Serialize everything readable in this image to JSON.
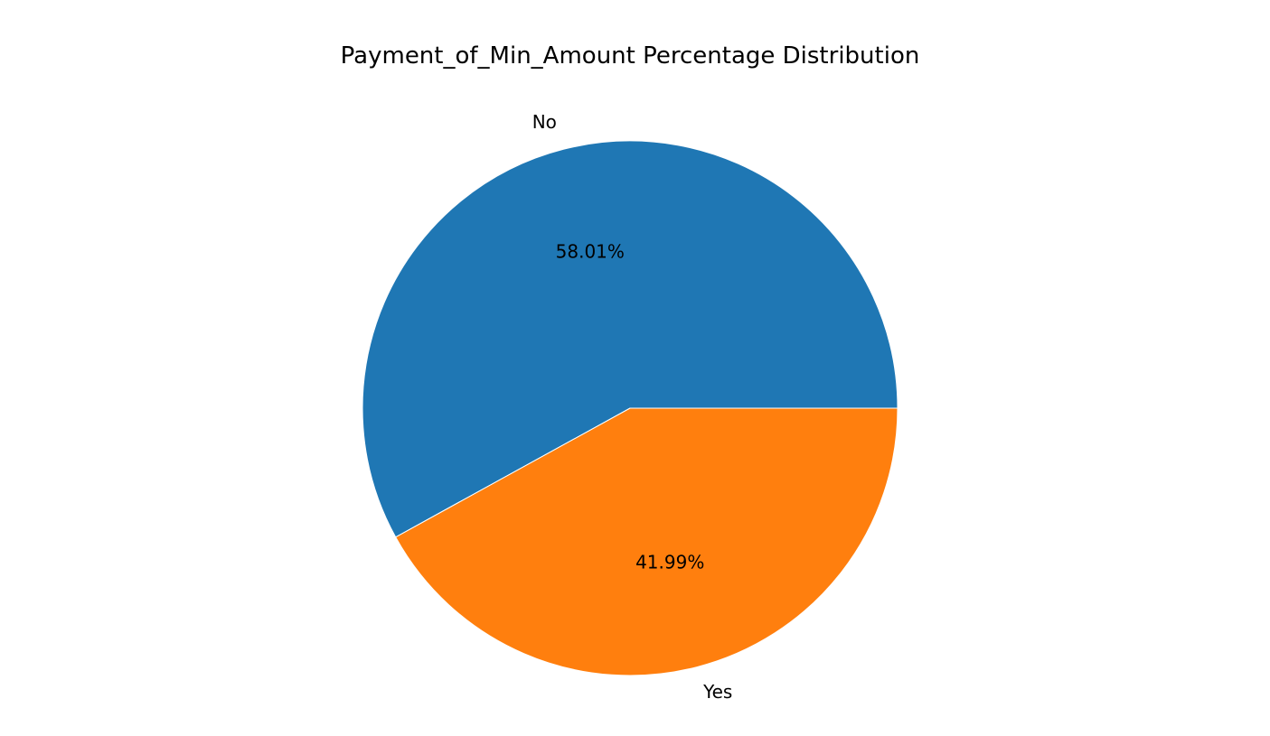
{
  "chart_data": {
    "type": "pie",
    "title": "Payment_of_Min_Amount Percentage Distribution",
    "start_angle_deg": 0,
    "direction": "counterclockwise",
    "slices": [
      {
        "label": "No",
        "value": 58.01,
        "pct_label": "58.01%",
        "color": "#1f77b4"
      },
      {
        "label": "Yes",
        "value": 41.99,
        "pct_label": "41.99%",
        "color": "#ff7f0e"
      }
    ]
  }
}
